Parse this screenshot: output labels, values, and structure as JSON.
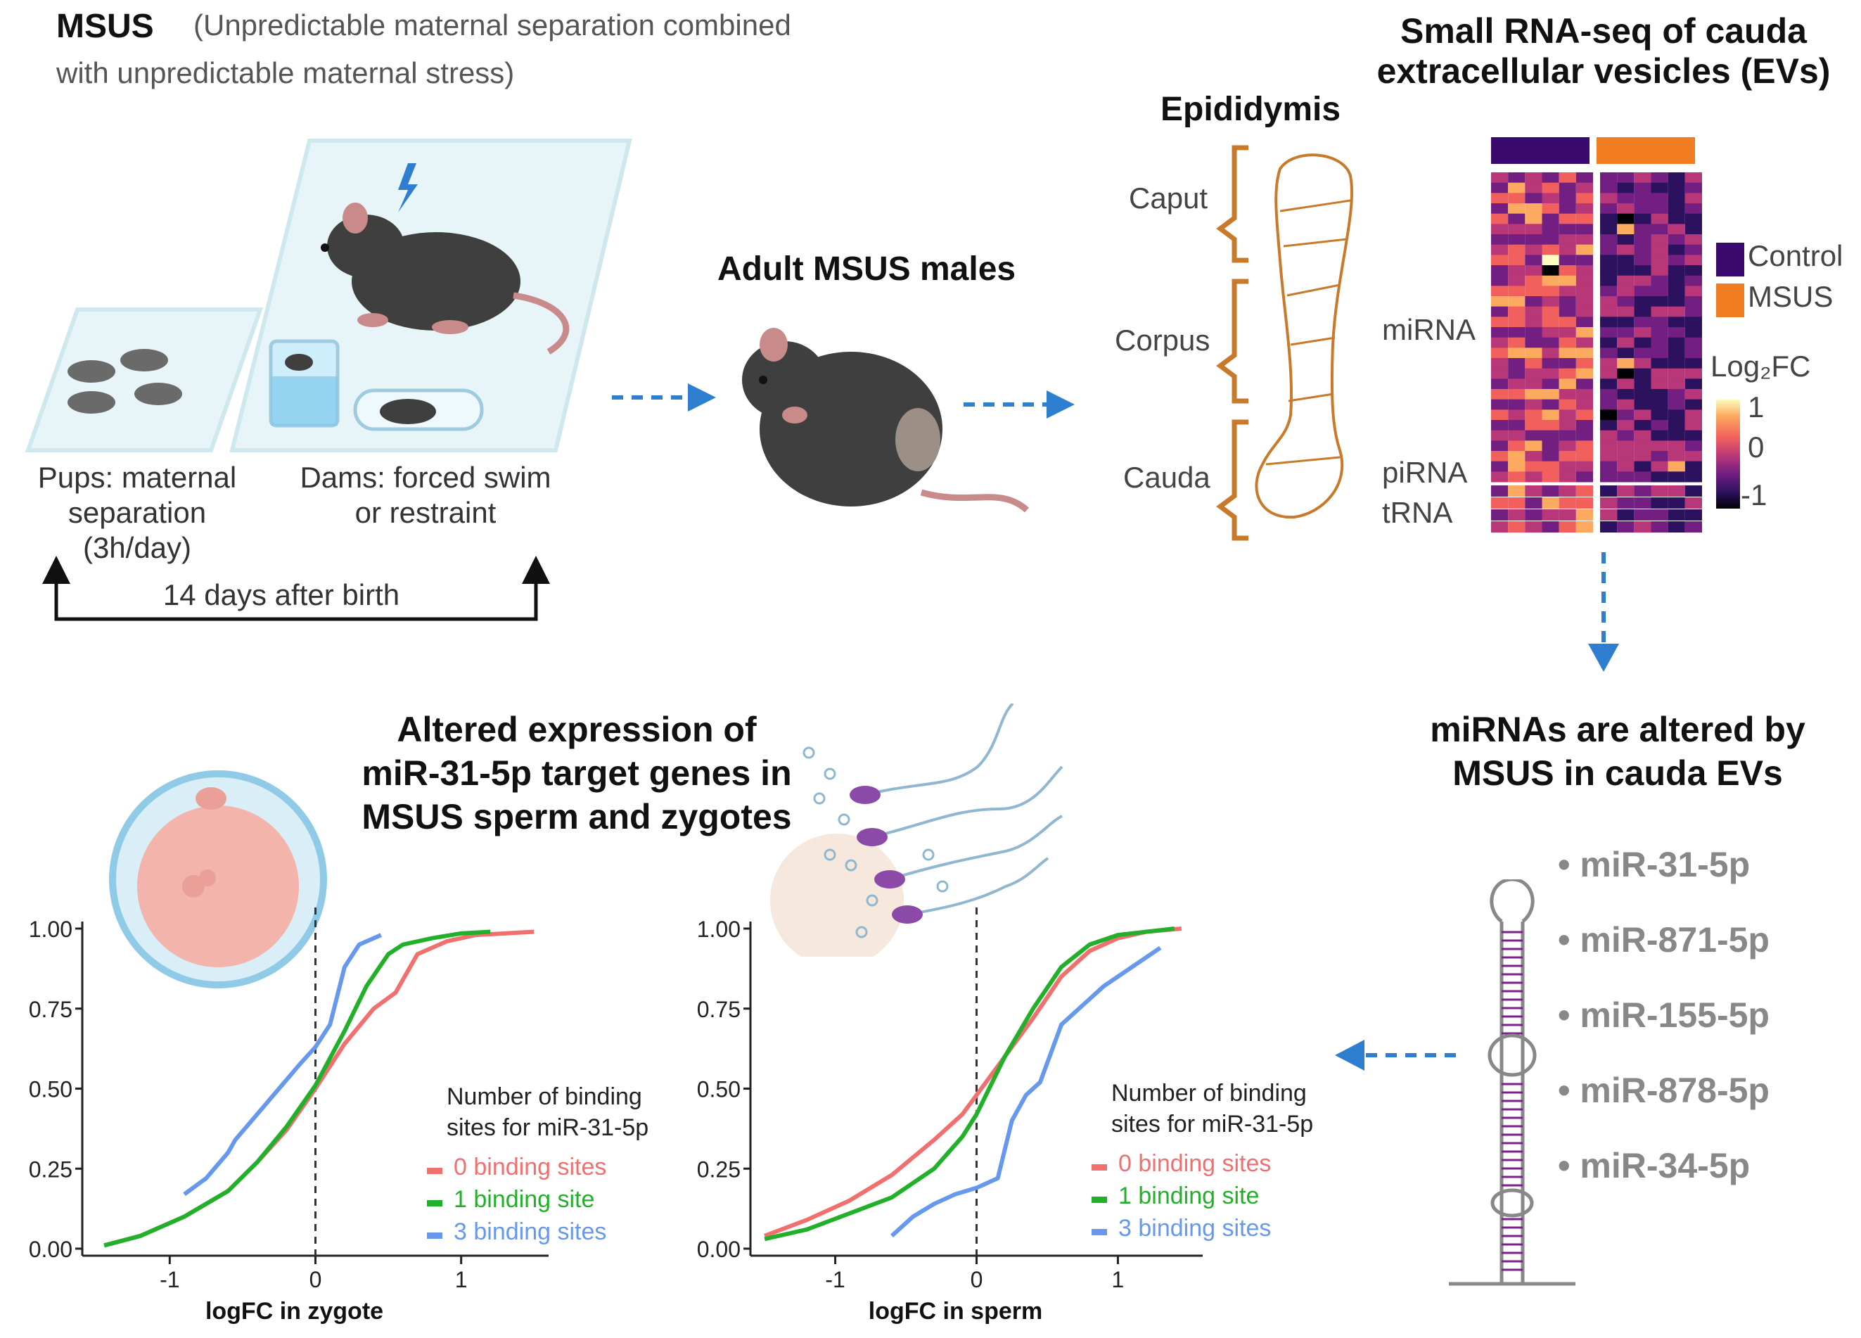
{
  "msus": {
    "title": "MSUS",
    "subtitle_line1": "(Unpredictable maternal separation combined",
    "subtitle_line2": "with unpredictable maternal stress)"
  },
  "protocol": {
    "pups_line1": "Pups: maternal",
    "pups_line2": "separation",
    "pups_line3": "(3h/day)",
    "dams_line1": "Dams: forced swim",
    "dams_line2": "or restraint",
    "duration": "14 days after birth"
  },
  "adult": {
    "title": "Adult MSUS males"
  },
  "epididymis": {
    "title": "Epididymis",
    "regions": [
      "Caput",
      "Corpus",
      "Cauda"
    ]
  },
  "rnaseq": {
    "title_line1": "Small RNA-seq of cauda",
    "title_line2": "extracellular vesicles (EVs)",
    "row_labels": [
      "miRNA",
      "piRNA",
      "tRNA"
    ],
    "legend": [
      {
        "label": "Control",
        "color": "#3a0a6e"
      },
      {
        "label": "MSUS",
        "color": "#f07d22"
      }
    ],
    "colorbar_title": "Log₂FC",
    "colorbar_ticks": [
      "1",
      "0",
      "-1"
    ]
  },
  "mirnas": {
    "title_line1": "miRNAs are altered by",
    "title_line2": "MSUS in cauda EVs",
    "items": [
      "miR-31-5p",
      "miR-871-5p",
      "miR-155-5p",
      "miR-878-5p",
      "miR-34-5p"
    ]
  },
  "altered": {
    "title_line1": "Altered expression of",
    "title_line2": "miR-31-5p target genes in",
    "title_line3": "MSUS sperm and zygotes"
  },
  "colors": {
    "arrow": "#2f7fd0",
    "zero": "#f07070",
    "one": "#22b02a",
    "three": "#6699ee"
  },
  "chart_data": [
    {
      "type": "line",
      "xlabel": "logFC in zygote",
      "ylabel": "",
      "xlim": [
        -1.6,
        1.6
      ],
      "ylim": [
        0,
        1
      ],
      "xticks": [
        "-1",
        "0",
        "1"
      ],
      "yticks": [
        "0.00",
        "0.25",
        "0.50",
        "0.75",
        "1.00"
      ],
      "legend_title_line1": "Number of binding",
      "legend_title_line2": "sites for miR-31-5p",
      "series": [
        {
          "name": "0 binding sites",
          "x": [
            -1.45,
            -1.2,
            -0.9,
            -0.6,
            -0.4,
            -0.2,
            0,
            0.2,
            0.4,
            0.55,
            0.7,
            0.9,
            1.1,
            1.3,
            1.5
          ],
          "y": [
            0.01,
            0.04,
            0.1,
            0.18,
            0.27,
            0.37,
            0.5,
            0.64,
            0.75,
            0.8,
            0.92,
            0.96,
            0.98,
            0.985,
            0.99
          ]
        },
        {
          "name": "1 binding site",
          "x": [
            -1.45,
            -1.2,
            -0.9,
            -0.6,
            -0.4,
            -0.2,
            0,
            0.2,
            0.35,
            0.5,
            0.6,
            0.8,
            1.0,
            1.2
          ],
          "y": [
            0.01,
            0.04,
            0.1,
            0.18,
            0.27,
            0.38,
            0.51,
            0.68,
            0.82,
            0.92,
            0.95,
            0.97,
            0.985,
            0.99
          ]
        },
        {
          "name": "3 binding sites",
          "x": [
            -0.9,
            -0.75,
            -0.6,
            -0.55,
            -0.4,
            -0.25,
            -0.1,
            0,
            0.1,
            0.2,
            0.3,
            0.45
          ],
          "y": [
            0.17,
            0.22,
            0.3,
            0.34,
            0.42,
            0.5,
            0.58,
            0.63,
            0.7,
            0.88,
            0.95,
            0.98
          ]
        }
      ]
    },
    {
      "type": "line",
      "xlabel": "logFC in sperm",
      "ylabel": "",
      "xlim": [
        -1.6,
        1.6
      ],
      "ylim": [
        0,
        1
      ],
      "xticks": [
        "-1",
        "0",
        "1"
      ],
      "yticks": [
        "0.00",
        "0.25",
        "0.50",
        "0.75",
        "1.00"
      ],
      "legend_title_line1": "Number of binding",
      "legend_title_line2": "sites for miR-31-5p",
      "series": [
        {
          "name": "0 binding sites",
          "x": [
            -1.5,
            -1.2,
            -0.9,
            -0.6,
            -0.3,
            -0.1,
            0,
            0.2,
            0.4,
            0.6,
            0.8,
            1.0,
            1.2,
            1.45
          ],
          "y": [
            0.04,
            0.09,
            0.15,
            0.23,
            0.34,
            0.42,
            0.48,
            0.6,
            0.72,
            0.85,
            0.93,
            0.97,
            0.99,
            1.0
          ]
        },
        {
          "name": "1 binding site",
          "x": [
            -1.5,
            -1.2,
            -0.9,
            -0.6,
            -0.3,
            -0.1,
            0,
            0.2,
            0.4,
            0.6,
            0.8,
            1.0,
            1.2,
            1.4
          ],
          "y": [
            0.03,
            0.06,
            0.11,
            0.16,
            0.25,
            0.35,
            0.42,
            0.6,
            0.75,
            0.88,
            0.95,
            0.98,
            0.99,
            1.0
          ]
        },
        {
          "name": "3 binding sites",
          "x": [
            -0.6,
            -0.45,
            -0.3,
            -0.15,
            0,
            0.15,
            0.25,
            0.35,
            0.45,
            0.6,
            0.75,
            0.9,
            1.1,
            1.3
          ],
          "y": [
            0.04,
            0.1,
            0.14,
            0.17,
            0.19,
            0.22,
            0.4,
            0.48,
            0.52,
            0.7,
            0.76,
            0.82,
            0.88,
            0.94
          ]
        }
      ]
    }
  ]
}
